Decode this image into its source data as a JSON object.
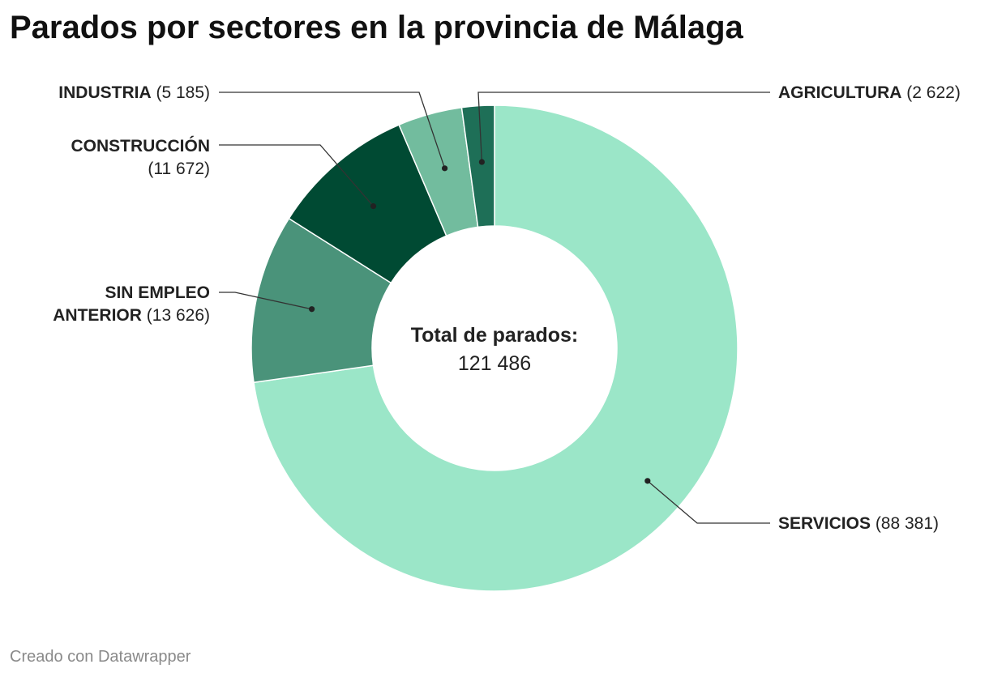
{
  "title": "Parados por sectores en la provincia de Málaga",
  "footer": "Creado con Datawrapper",
  "center_label": {
    "heading": "Total de parados:",
    "value": "121 486"
  },
  "chart_data": {
    "type": "pie",
    "donut": true,
    "title": "Parados por sectores en la provincia de Málaga",
    "total": 121486,
    "slices": [
      {
        "name": "SERVICIOS",
        "value": 88381,
        "display": "(88 381)",
        "color": "#9be6c8"
      },
      {
        "name": "SIN EMPLEO ANTERIOR",
        "value": 13626,
        "display": "(13 626)",
        "color": "#4a937a"
      },
      {
        "name": "CONSTRUCCIÓN",
        "value": 11672,
        "display": "(11 672)",
        "color": "#004a33"
      },
      {
        "name": "INDUSTRIA",
        "value": 5185,
        "display": "(5 185)",
        "color": "#72bc9e"
      },
      {
        "name": "AGRICULTURA",
        "value": 2622,
        "display": "(2 622)",
        "color": "#1e6f57"
      }
    ]
  }
}
